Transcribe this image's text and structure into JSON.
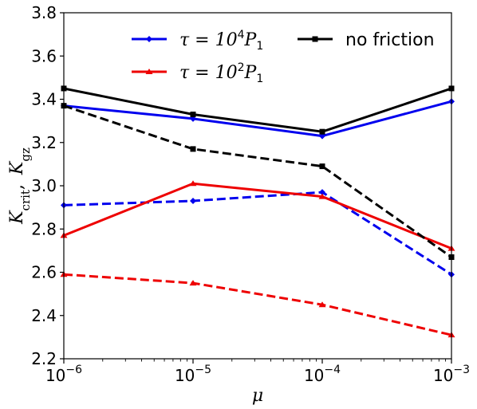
{
  "chart_data": {
    "type": "line",
    "xscale": "log",
    "x": [
      1e-06,
      1e-05,
      0.0001,
      0.001
    ],
    "x_tick_labels": [
      {
        "base": "10",
        "exp": "−6"
      },
      {
        "base": "10",
        "exp": "−5"
      },
      {
        "base": "10",
        "exp": "−4"
      },
      {
        "base": "10",
        "exp": "−3"
      }
    ],
    "xlim": [
      1e-06,
      0.001
    ],
    "ylim": [
      2.2,
      3.8
    ],
    "y_ticks": [
      2.2,
      2.4,
      2.6,
      2.8,
      3.0,
      3.2,
      3.4,
      3.6,
      3.8
    ],
    "y_tick_labels": [
      "2.2",
      "2.4",
      "2.6",
      "2.8",
      "3.0",
      "3.2",
      "3.4",
      "3.6",
      "3.8"
    ],
    "xlabel": "μ",
    "ylabel": {
      "k1": "K",
      "sub1": "crit",
      "sep": ",",
      "k2": "K",
      "sub2": "gz"
    },
    "grid": false,
    "legend_position": "top",
    "legend": [
      {
        "series": "tau4",
        "prefix": "τ = 10",
        "sup": "4",
        "var": "P",
        "sub": "1"
      },
      {
        "series": "tau2",
        "prefix": "τ = 10",
        "sup": "2",
        "var": "P",
        "sub": "1"
      },
      {
        "series": "nofric",
        "text": "no friction"
      }
    ],
    "series": [
      {
        "id": "tau4-solid",
        "group": "tau4",
        "color": "#0000ee",
        "style": "solid",
        "marker": "diamond",
        "values": [
          3.37,
          3.31,
          3.23,
          3.39
        ]
      },
      {
        "id": "tau4-dashed",
        "group": "tau4",
        "color": "#0000ee",
        "style": "dashed",
        "marker": "diamond",
        "values": [
          2.91,
          2.93,
          2.97,
          2.59
        ]
      },
      {
        "id": "tau2-solid",
        "group": "tau2",
        "color": "#ee0000",
        "style": "solid",
        "marker": "triangle",
        "values": [
          2.77,
          3.01,
          2.95,
          2.71
        ]
      },
      {
        "id": "tau2-dashed",
        "group": "tau2",
        "color": "#ee0000",
        "style": "dashed",
        "marker": "triangle",
        "values": [
          2.59,
          2.55,
          2.45,
          2.31
        ]
      },
      {
        "id": "nofric-solid",
        "group": "nofric",
        "color": "#000000",
        "style": "solid",
        "marker": "square",
        "values": [
          3.45,
          3.33,
          3.25,
          3.45
        ]
      },
      {
        "id": "nofric-dashed",
        "group": "nofric",
        "color": "#000000",
        "style": "dashed",
        "marker": "square",
        "values": [
          3.37,
          3.17,
          3.09,
          2.67
        ]
      }
    ]
  }
}
